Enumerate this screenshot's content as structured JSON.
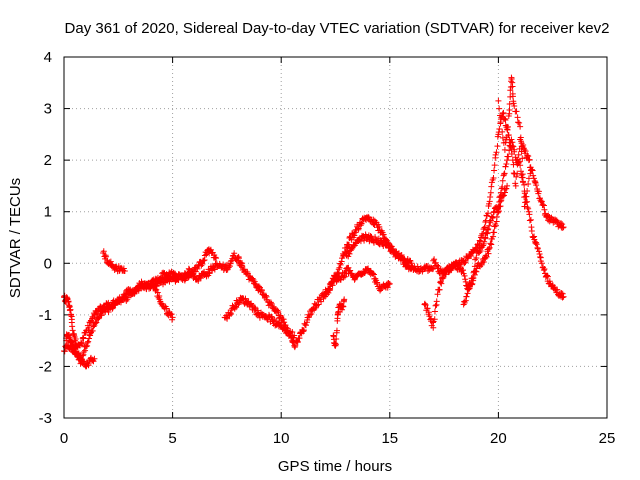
{
  "chart_data": {
    "type": "scatter",
    "title": "Day 361 of 2020, Sidereal Day-to-day VTEC variation (SDTVAR) for receiver kev2",
    "xlabel": "GPS time / hours",
    "ylabel": "SDTVAR / TECUs",
    "xlim": [
      0,
      25
    ],
    "ylim": [
      -3,
      4
    ],
    "x_ticks": [
      0,
      5,
      10,
      15,
      20,
      25
    ],
    "y_ticks": [
      -3,
      -2,
      -1,
      0,
      1,
      2,
      3,
      4
    ],
    "x_tick_labels": [
      "0",
      "5",
      "10",
      "15",
      "20",
      "25"
    ],
    "y_tick_labels": [
      "-3",
      "-2",
      "-1",
      "0",
      "1",
      "2",
      "3",
      "4"
    ],
    "grid": true,
    "marker": "+",
    "color": "#ff0000",
    "series": [
      {
        "name": "SDTVAR",
        "segments": [
          {
            "x": [
              0.0,
              0.2,
              0.4,
              0.6,
              0.8,
              1.0,
              1.2,
              1.4,
              1.6,
              1.8,
              2.0,
              2.2,
              2.4,
              2.6,
              2.8,
              3.0,
              3.2,
              3.4,
              3.6,
              3.8,
              4.0,
              4.2,
              4.4,
              4.6,
              4.8,
              5.0,
              5.2,
              5.4,
              5.6,
              5.8,
              6.0,
              6.2,
              6.4,
              6.6,
              6.8,
              7.0,
              7.2,
              7.4,
              7.6,
              7.8,
              8.0,
              8.2
            ],
            "y": [
              -1.7,
              -1.6,
              -1.7,
              -1.75,
              -1.85,
              -1.6,
              -1.4,
              -1.2,
              -1.05,
              -0.95,
              -0.9,
              -0.85,
              -0.75,
              -0.7,
              -0.6,
              -0.55,
              -0.55,
              -0.45,
              -0.4,
              -0.5,
              -0.4,
              -0.35,
              -0.3,
              -0.2,
              -0.25,
              -0.2,
              -0.25,
              -0.3,
              -0.2,
              -0.15,
              -0.25,
              -0.3,
              -0.2,
              -0.2,
              -0.1,
              -0.05,
              -0.05,
              -0.1,
              -0.05,
              0.15,
              0.1,
              0.0
            ]
          },
          {
            "x": [
              0.0,
              0.1,
              0.2,
              0.3,
              0.4,
              0.5,
              0.6,
              0.8,
              1.0,
              1.2,
              1.4,
              1.6,
              1.8,
              2.0,
              2.2,
              2.4,
              2.6,
              2.8,
              3.0,
              3.2,
              3.4,
              3.6,
              3.8,
              4.0,
              4.2,
              4.4,
              4.6,
              4.8,
              5.0,
              5.2,
              5.4,
              5.6,
              5.8,
              6.0,
              6.2,
              6.4,
              6.6,
              6.8,
              7.0
            ],
            "y": [
              -0.65,
              -0.7,
              -0.75,
              -0.9,
              -1.3,
              -1.5,
              -1.6,
              -1.55,
              -1.35,
              -1.15,
              -1.0,
              -0.9,
              -0.85,
              -0.8,
              -0.8,
              -0.75,
              -0.7,
              -0.7,
              -0.6,
              -0.55,
              -0.5,
              -0.45,
              -0.4,
              -0.45,
              -0.4,
              -0.35,
              -0.35,
              -0.3,
              -0.3,
              -0.3,
              -0.25,
              -0.3,
              -0.2,
              -0.15,
              -0.05,
              0.05,
              0.25,
              0.2,
              0.1
            ]
          },
          {
            "x": [
              0.1,
              0.2,
              0.3,
              0.4,
              0.5,
              0.6,
              0.8,
              1.0,
              1.2,
              1.4
            ],
            "y": [
              -1.45,
              -1.4,
              -1.5,
              -1.6,
              -1.7,
              -1.8,
              -1.9,
              -2.0,
              -1.9,
              -1.85
            ]
          },
          {
            "x": [
              1.8,
              2.0,
              2.2,
              2.4,
              2.6,
              2.8
            ],
            "y": [
              0.2,
              0.05,
              -0.05,
              -0.1,
              -0.1,
              -0.15
            ]
          },
          {
            "x": [
              4.2,
              4.4,
              4.6,
              4.8,
              5.0
            ],
            "y": [
              -0.5,
              -0.7,
              -0.85,
              -0.95,
              -1.05
            ]
          },
          {
            "x": [
              7.4,
              7.6,
              7.8,
              8.0,
              8.2,
              8.4,
              8.6,
              8.8,
              9.0,
              9.2,
              9.4,
              9.6,
              9.8,
              10.0,
              10.2,
              10.4,
              10.6
            ],
            "y": [
              -1.05,
              -1.0,
              -0.85,
              -0.75,
              -0.7,
              -0.75,
              -0.8,
              -0.9,
              -1.0,
              -1.0,
              -1.05,
              -1.1,
              -1.2,
              -1.2,
              -1.3,
              -1.35,
              -1.4
            ]
          },
          {
            "x": [
              8.0,
              8.2,
              8.4,
              8.6,
              8.8,
              9.0,
              9.2,
              9.4,
              9.6,
              9.8,
              10.0,
              10.2,
              10.4,
              10.6,
              10.8,
              11.0,
              11.2,
              11.4,
              11.6,
              11.8,
              12.0,
              12.2,
              12.4,
              12.6,
              12.8,
              13.0
            ],
            "y": [
              0.05,
              -0.05,
              -0.2,
              -0.3,
              -0.4,
              -0.5,
              -0.6,
              -0.75,
              -0.85,
              -0.95,
              -1.05,
              -1.2,
              -1.4,
              -1.6,
              -1.45,
              -1.3,
              -1.1,
              -0.9,
              -0.8,
              -0.7,
              -0.6,
              -0.5,
              -0.35,
              -0.3,
              -0.25,
              -0.2
            ]
          },
          {
            "x": [
              12.0,
              12.2,
              12.4,
              12.6,
              12.8,
              13.0,
              13.2,
              13.4,
              13.6,
              13.8,
              14.0,
              14.2,
              14.4,
              14.6,
              14.8,
              15.0,
              15.2,
              15.4,
              15.6,
              15.8,
              16.0,
              16.2,
              16.4,
              16.6,
              16.8,
              17.0
            ],
            "y": [
              -0.6,
              -0.5,
              -0.3,
              -0.2,
              0.1,
              0.3,
              0.5,
              0.6,
              0.75,
              0.85,
              0.9,
              0.8,
              0.75,
              0.6,
              0.45,
              0.35,
              0.2,
              0.1,
              0.05,
              -0.05,
              -0.1,
              -0.1,
              -0.15,
              -0.1,
              -0.1,
              -0.1
            ]
          },
          {
            "x": [
              13.0,
              13.2,
              13.4,
              13.6,
              13.8,
              14.0,
              14.2,
              14.4,
              14.6,
              14.8,
              15.0
            ],
            "y": [
              -0.1,
              -0.2,
              -0.3,
              -0.2,
              -0.15,
              -0.1,
              -0.2,
              -0.4,
              -0.5,
              -0.45,
              -0.4
            ]
          },
          {
            "x": [
              13.0,
              13.2,
              13.4,
              13.6,
              13.8,
              14.0,
              14.2,
              14.4,
              14.6,
              14.8,
              15.0,
              15.2,
              15.4,
              15.6,
              15.8,
              16.0
            ],
            "y": [
              0.15,
              0.25,
              0.35,
              0.45,
              0.5,
              0.5,
              0.45,
              0.45,
              0.4,
              0.35,
              0.3,
              0.2,
              0.15,
              0.1,
              0.05,
              0.0
            ]
          },
          {
            "x": [
              12.4,
              12.5,
              12.6,
              12.7,
              12.8,
              12.9
            ],
            "y": [
              -1.4,
              -1.6,
              -1.0,
              -0.8,
              -0.9,
              -0.7
            ]
          },
          {
            "x": [
              16.6,
              16.8,
              17.0,
              17.2,
              17.4,
              17.6,
              17.8,
              18.0,
              18.2,
              18.4,
              18.6,
              18.8,
              19.0,
              19.2,
              19.4,
              19.6,
              19.8,
              20.0,
              20.2,
              20.4,
              20.6,
              20.8,
              21.0,
              21.2,
              21.4,
              21.6,
              21.8,
              22.0,
              22.2,
              22.4,
              22.6,
              22.8,
              23.0
            ],
            "y": [
              -0.8,
              -0.95,
              -1.25,
              -0.6,
              -0.3,
              -0.15,
              -0.1,
              -0.05,
              -0.1,
              -0.2,
              -0.5,
              -0.4,
              0.2,
              0.3,
              0.5,
              0.8,
              1.0,
              1.1,
              1.6,
              2.0,
              2.4,
              2.0,
              1.9,
              1.4,
              1.0,
              0.5,
              0.3,
              0.0,
              -0.25,
              -0.4,
              -0.5,
              -0.6,
              -0.65
            ]
          },
          {
            "x": [
              17.0,
              17.2,
              17.4,
              17.6,
              17.8,
              18.0,
              18.2,
              18.4,
              18.6,
              18.8,
              19.0,
              19.2,
              19.4,
              19.6,
              19.8,
              20.0,
              20.2,
              20.4,
              20.6,
              20.8,
              21.0,
              21.2,
              21.4,
              21.6,
              21.8,
              22.0,
              22.2,
              22.4,
              22.6,
              22.8,
              23.0
            ],
            "y": [
              0.05,
              -0.1,
              -0.2,
              -0.15,
              -0.1,
              -0.05,
              0.0,
              0.05,
              0.1,
              0.2,
              0.3,
              0.5,
              0.8,
              1.2,
              1.8,
              2.5,
              2.9,
              2.6,
              2.2,
              1.5,
              2.4,
              2.2,
              2.0,
              1.7,
              1.4,
              1.2,
              0.9,
              0.85,
              0.8,
              0.75,
              0.7
            ]
          },
          {
            "x": [
              18.4,
              18.6,
              18.8,
              19.0,
              19.2,
              19.4,
              19.6,
              19.8,
              20.0,
              20.2,
              20.4
            ],
            "y": [
              -0.8,
              -0.5,
              -0.3,
              -0.1,
              0.0,
              0.1,
              0.3,
              0.6,
              1.0,
              1.3,
              1.5
            ]
          },
          {
            "x": [
              20.0,
              20.3,
              20.5,
              20.6,
              20.7,
              21.0,
              21.2,
              21.5
            ],
            "y": [
              3.15,
              2.2,
              2.9,
              3.6,
              3.1,
              2.65,
              1.1,
              1.8
            ]
          }
        ]
      }
    ]
  }
}
